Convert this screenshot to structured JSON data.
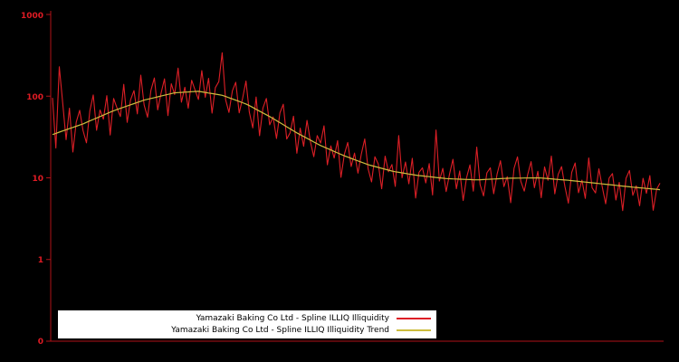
{
  "figure": {
    "background": "#000000",
    "axis_color": "#b01217",
    "tick_label_color": "#e01b24"
  },
  "chart_data": {
    "type": "line",
    "title": "",
    "xlabel": "",
    "ylabel": "",
    "yscale": "log",
    "grid": false,
    "legend_position": "lower center",
    "ytick_labels": [
      "1000",
      "100",
      "10",
      "1",
      "0"
    ],
    "ylim_log10": [
      -1,
      3
    ],
    "x_points": 180,
    "series": [
      {
        "name": "Yamazaki Baking Co Ltd - Spline ILLIQ Illiquidity",
        "color": "#dd1f26",
        "role": "raw"
      },
      {
        "name": "Yamazaki Baking Co Ltd - Spline ILLIQ Illiquidity Trend",
        "color": "#cdbd3e",
        "role": "trend"
      }
    ],
    "trend_log10_control": [
      [
        0.0,
        1.53
      ],
      [
        0.05,
        1.66
      ],
      [
        0.1,
        1.82
      ],
      [
        0.15,
        1.95
      ],
      [
        0.2,
        2.04
      ],
      [
        0.24,
        2.06
      ],
      [
        0.28,
        2.01
      ],
      [
        0.32,
        1.9
      ],
      [
        0.36,
        1.74
      ],
      [
        0.4,
        1.56
      ],
      [
        0.44,
        1.4
      ],
      [
        0.48,
        1.27
      ],
      [
        0.52,
        1.16
      ],
      [
        0.56,
        1.08
      ],
      [
        0.6,
        1.03
      ],
      [
        0.65,
        0.99
      ],
      [
        0.7,
        0.975
      ],
      [
        0.75,
        0.995
      ],
      [
        0.8,
        1.0
      ],
      [
        0.85,
        0.97
      ],
      [
        0.9,
        0.93
      ],
      [
        0.95,
        0.89
      ],
      [
        1.0,
        0.855
      ]
    ],
    "noise_log10": [
      0.45,
      -0.18,
      0.8,
      0.35,
      -0.12,
      0.25,
      -0.3,
      0.05,
      0.18,
      -0.08,
      -0.25,
      0.12,
      0.3,
      -0.15,
      0.08,
      -0.05,
      0.22,
      -0.28,
      0.15,
      0.02,
      -0.1,
      0.28,
      -0.2,
      0.06,
      0.16,
      -0.14,
      0.32,
      -0.06,
      -0.22,
      0.1,
      0.24,
      -0.16,
      0.04,
      0.2,
      -0.26,
      0.12,
      -0.02,
      0.3,
      -0.12,
      0.06,
      -0.2,
      0.14,
      0.02,
      -0.1,
      0.26,
      -0.06,
      0.18,
      -0.24,
      0.08,
      0.16,
      0.52,
      -0.04,
      -0.18,
      0.1,
      0.22,
      -0.14,
      0.05,
      0.28,
      -0.08,
      -0.25,
      0.15,
      -0.3,
      0.06,
      0.2,
      -0.1,
      0.02,
      -0.22,
      0.12,
      0.25,
      -0.15,
      -0.05,
      0.18,
      -0.25,
      0.08,
      -0.12,
      0.22,
      -0.02,
      -0.18,
      0.1,
      0.03,
      0.26,
      -0.2,
      0.05,
      -0.08,
      0.15,
      -0.28,
      0.02,
      0.18,
      -0.1,
      0.08,
      -0.15,
      0.1,
      0.3,
      -0.05,
      -0.2,
      0.12,
      0.04,
      -0.25,
      0.16,
      -0.02,
      0.08,
      -0.18,
      0.45,
      -0.06,
      0.14,
      -0.12,
      0.2,
      -0.28,
      0.04,
      0.1,
      -0.08,
      0.16,
      -0.22,
      0.58,
      -0.04,
      0.12,
      -0.16,
      0.06,
      0.24,
      -0.12,
      0.1,
      -0.26,
      0.02,
      0.18,
      -0.14,
      0.4,
      -0.06,
      -0.2,
      0.08,
      0.14,
      -0.18,
      0.06,
      0.22,
      -0.1,
      0.02,
      -0.3,
      0.12,
      0.26,
      -0.04,
      -0.16,
      0.04,
      0.2,
      -0.12,
      0.08,
      -0.24,
      0.14,
      -0.02,
      0.28,
      -0.18,
      0.06,
      0.16,
      -0.08,
      -0.28,
      0.1,
      0.22,
      -0.14,
      0.02,
      -0.2,
      0.3,
      -0.06,
      -0.12,
      0.18,
      -0.04,
      -0.24,
      0.08,
      0.14,
      -0.18,
      0.04,
      -0.3,
      0.1,
      0.2,
      -0.1,
      0.02,
      -0.22,
      0.12,
      -0.06,
      0.16,
      -0.26,
      0.0,
      0.08
    ]
  },
  "legend": {
    "background": "#ffffff",
    "entries": [
      {
        "label": "Yamazaki Baking Co Ltd - Spline ILLIQ Illiquidity",
        "color": "#dd1f26"
      },
      {
        "label": "Yamazaki Baking Co Ltd - Spline ILLIQ Illiquidity Trend",
        "color": "#cdbd3e"
      }
    ]
  }
}
